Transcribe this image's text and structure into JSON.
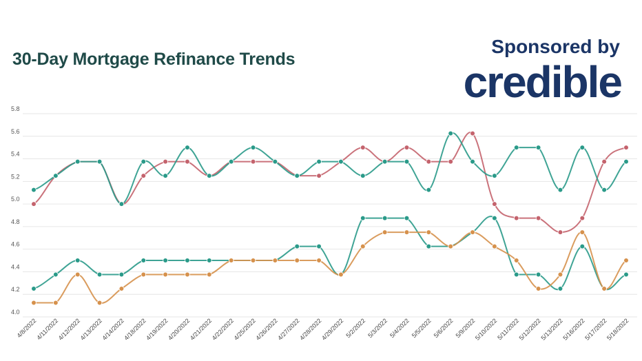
{
  "header": {
    "title": "30-Day Mortgage Refinance Trends",
    "sponsor_text": "Sponsored by",
    "logo_text": "credible"
  },
  "chart_data": {
    "type": "line",
    "title": "30-Day Mortgage Refinance Trends",
    "xlabel": "",
    "ylabel": "",
    "ylim": [
      4.0,
      5.8
    ],
    "yticks": [
      "4.0",
      "4.2",
      "4.4",
      "4.6",
      "4.8",
      "5.0",
      "5.2",
      "5.4",
      "5.6",
      "5.8"
    ],
    "grid": true,
    "legend": "none",
    "smooth": true,
    "categories": [
      "4/8/2022",
      "4/11/2022",
      "4/12/2022",
      "4/13/2022",
      "4/14/2022",
      "4/18/2022",
      "4/19/2022",
      "4/20/2022",
      "4/21/2022",
      "4/22/2022",
      "4/25/2022",
      "4/26/2022",
      "4/27/2022",
      "4/28/2022",
      "4/29/2022",
      "5/2/2022",
      "5/3/2022",
      "5/4/2022",
      "5/5/2022",
      "5/6/2022",
      "5/9/2022",
      "5/10/2022",
      "5/11/2022",
      "5/12/2022",
      "5/13/2022",
      "5/16/2022",
      "5/17/2022",
      "5/18/2022"
    ],
    "series": [
      {
        "color": "#c4636d",
        "values": [
          5.0,
          5.25,
          5.375,
          5.375,
          5.0,
          5.25,
          5.375,
          5.375,
          5.25,
          5.375,
          5.375,
          5.375,
          5.25,
          5.25,
          5.375,
          5.5,
          5.375,
          5.5,
          5.375,
          5.375,
          5.625,
          5.0,
          4.875,
          4.875,
          4.75,
          4.875,
          5.375,
          5.5
        ]
      },
      {
        "color": "#2a9a89",
        "values": [
          5.125,
          5.25,
          5.375,
          5.375,
          5.0,
          5.375,
          5.25,
          5.5,
          5.25,
          5.375,
          5.5,
          5.375,
          5.25,
          5.375,
          5.375,
          5.25,
          5.375,
          5.375,
          5.125,
          5.625,
          5.375,
          5.25,
          5.5,
          5.5,
          5.125,
          5.5,
          5.125,
          5.375
        ]
      },
      {
        "color": "#2a9a89",
        "values": [
          4.25,
          4.375,
          4.5,
          4.375,
          4.375,
          4.5,
          4.5,
          4.5,
          4.5,
          4.5,
          4.5,
          4.5,
          4.625,
          4.625,
          4.375,
          4.875,
          4.875,
          4.875,
          4.625,
          4.625,
          4.75,
          4.875,
          4.375,
          4.375,
          4.25,
          4.625,
          4.25,
          4.375
        ]
      },
      {
        "color": "#d6914c",
        "values": [
          4.125,
          4.125,
          4.375,
          4.125,
          4.25,
          4.375,
          4.375,
          4.375,
          4.375,
          4.5,
          4.5,
          4.5,
          4.5,
          4.5,
          4.375,
          4.625,
          4.75,
          4.75,
          4.75,
          4.625,
          4.75,
          4.625,
          4.5,
          4.25,
          4.375,
          4.75,
          4.25,
          4.5
        ]
      }
    ]
  }
}
